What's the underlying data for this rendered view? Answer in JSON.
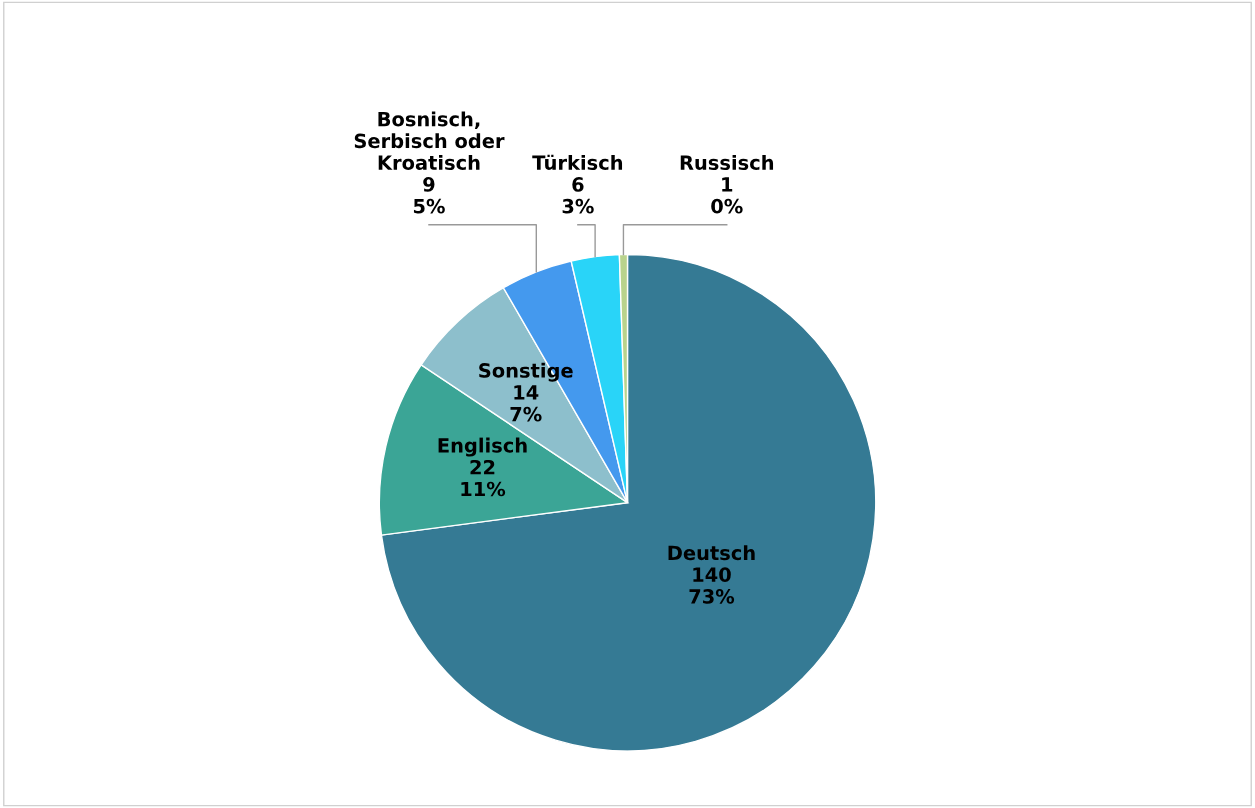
{
  "chart_data": {
    "type": "pie",
    "categories": [
      "Deutsch",
      "Englisch",
      "Sonstige",
      "Bosnisch, Serbisch oder Kroatisch",
      "Türkisch",
      "Russisch"
    ],
    "values": [
      140,
      22,
      14,
      9,
      6,
      1
    ],
    "colors": [
      "#357a94",
      "#3ba596",
      "#8dbfcc",
      "#4499ee",
      "#29d4f8",
      "#b9d38c"
    ],
    "value_labels": [
      "140\n73%",
      "22\n11%",
      "14\n7%",
      "9\n5%",
      "6\n3%",
      "1\n0%"
    ],
    "legend": false
  }
}
